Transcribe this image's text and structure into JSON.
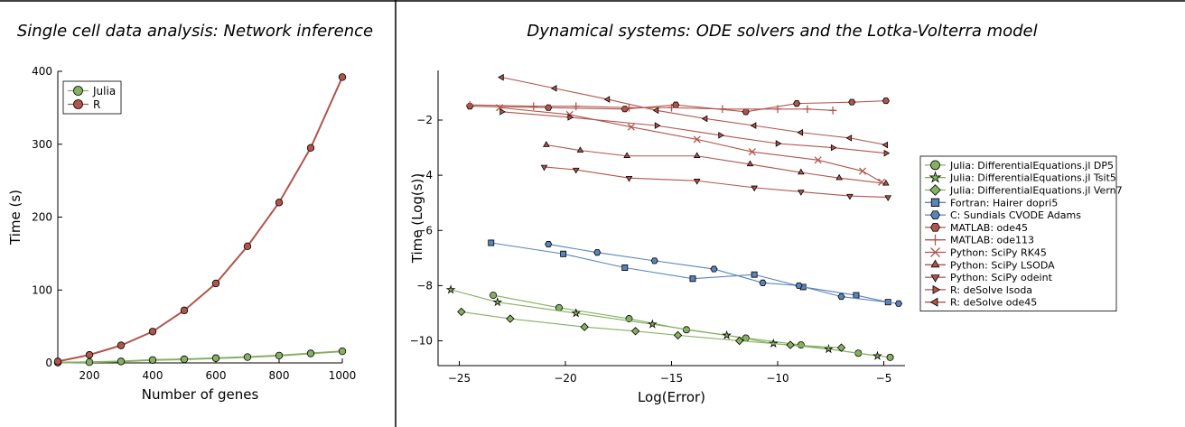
{
  "panels": [
    {
      "title": "Single cell data analysis: Network inference"
    },
    {
      "title": "Dynamical systems: ODE solvers and the Lotka-Volterra model"
    }
  ],
  "chart_data": [
    {
      "type": "line",
      "title": "Single cell data analysis: Network inference",
      "xlabel": "Number of genes",
      "ylabel": "Time (s)",
      "xlim": [
        100,
        1000
      ],
      "ylim": [
        0,
        400
      ],
      "xticks": [
        200,
        400,
        600,
        800,
        1000
      ],
      "yticks": [
        0,
        100,
        200,
        300,
        400
      ],
      "grid": false,
      "legend": "top-left",
      "x": [
        100,
        200,
        300,
        400,
        500,
        600,
        700,
        800,
        900,
        1000
      ],
      "series": [
        {
          "name": "Julia",
          "color": "#86b062",
          "marker": "circle",
          "values": [
            0.5,
            1,
            2,
            4,
            5,
            6.5,
            8,
            10,
            13,
            16
          ]
        },
        {
          "name": "R",
          "color": "#b0554d",
          "marker": "circle",
          "values": [
            2,
            11,
            24,
            43,
            72,
            109,
            160,
            220,
            295,
            392
          ]
        }
      ]
    },
    {
      "type": "line",
      "title": "Dynamical systems: ODE solvers and the Lotka-Volterra model",
      "xlabel": "Log(Error)",
      "ylabel": "Time (Log(s))",
      "xlim": [
        -26,
        -4
      ],
      "ylim": [
        -10.9,
        -0.2
      ],
      "xticks": [
        -25,
        -20,
        -15,
        -10,
        -5
      ],
      "yticks": [
        -10,
        -8,
        -6,
        -4,
        -2
      ],
      "grid": false,
      "legend": "right",
      "series": [
        {
          "name": "Julia: DifferentialEquations.jl DP5",
          "color": "#86b062",
          "marker": "circle",
          "x": [
            -23.4,
            -20.3,
            -17.0,
            -14.3,
            -11.5,
            -8.9,
            -6.2,
            -4.7
          ],
          "y": [
            -8.35,
            -8.8,
            -9.2,
            -9.6,
            -9.9,
            -10.15,
            -10.45,
            -10.6
          ]
        },
        {
          "name": "Julia: DifferentialEquations.jl Tsit5",
          "color": "#86b062",
          "marker": "star",
          "x": [
            -25.4,
            -23.2,
            -19.5,
            -15.9,
            -12.4,
            -10.2,
            -7.6,
            -5.3
          ],
          "y": [
            -8.15,
            -8.6,
            -9.0,
            -9.4,
            -9.8,
            -10.1,
            -10.3,
            -10.55
          ]
        },
        {
          "name": "Julia: DifferentialEquations.jl Vern7",
          "color": "#86b062",
          "marker": "diamond",
          "x": [
            -24.9,
            -22.6,
            -19.1,
            -16.7,
            -14.7,
            -11.8,
            -9.4,
            -7.0
          ],
          "y": [
            -8.95,
            -9.2,
            -9.5,
            -9.65,
            -9.8,
            -10.0,
            -10.15,
            -10.25
          ]
        },
        {
          "name": "Fortran: Hairer dopri5",
          "color": "#5b84b8",
          "marker": "square",
          "x": [
            -23.5,
            -20.1,
            -17.2,
            -14.0,
            -11.1,
            -8.8,
            -6.3,
            -4.8
          ],
          "y": [
            -6.45,
            -6.85,
            -7.35,
            -7.75,
            -7.6,
            -8.05,
            -8.35,
            -8.6
          ]
        },
        {
          "name": "C: Sundials CVODE Adams",
          "color": "#5b84b8",
          "marker": "hexagon",
          "x": [
            -20.8,
            -18.5,
            -15.8,
            -13.0,
            -10.7,
            -9.0,
            -7.0,
            -4.3
          ],
          "y": [
            -6.5,
            -6.8,
            -7.1,
            -7.4,
            -7.9,
            -8.0,
            -8.4,
            -8.65
          ]
        },
        {
          "name": "MATLAB: ode45",
          "color": "#b0554d",
          "marker": "hexagon",
          "x": [
            -24.5,
            -20.8,
            -17.2,
            -14.8,
            -11.5,
            -9.1,
            -6.5,
            -4.9
          ],
          "y": [
            -1.5,
            -1.55,
            -1.6,
            -1.45,
            -1.7,
            -1.4,
            -1.35,
            -1.3
          ]
        },
        {
          "name": "MATLAB: ode113",
          "color": "#b0554d",
          "marker": "plus",
          "x": [
            -24.5,
            -21.5,
            -19.5,
            -17.0,
            -15.0,
            -12.6,
            -10.0,
            -8.6,
            -7.4
          ],
          "y": [
            -1.45,
            -1.5,
            -1.5,
            -1.55,
            -1.55,
            -1.6,
            -1.6,
            -1.6,
            -1.65
          ]
        },
        {
          "name": "Python: SciPy RK45",
          "color": "#b0554d",
          "marker": "x",
          "x": [
            -23.1,
            -19.8,
            -16.9,
            -13.8,
            -11.2,
            -8.1,
            -6.0,
            -5.1
          ],
          "y": [
            -1.55,
            -1.8,
            -2.25,
            -2.7,
            -3.15,
            -3.45,
            -3.85,
            -4.25
          ]
        },
        {
          "name": "Python: SciPy LSODA",
          "color": "#b0554d",
          "marker": "triangle-up",
          "x": [
            -20.9,
            -19.3,
            -17.1,
            -13.8,
            -11.3,
            -8.9,
            -7.1,
            -4.9
          ],
          "y": [
            -2.9,
            -3.1,
            -3.3,
            -3.3,
            -3.6,
            -3.9,
            -4.1,
            -4.3
          ]
        },
        {
          "name": "Python: SciPy odeint",
          "color": "#b0554d",
          "marker": "triangle-down",
          "x": [
            -21.0,
            -19.5,
            -17.0,
            -13.8,
            -11.1,
            -8.9,
            -6.6,
            -4.8
          ],
          "y": [
            -3.7,
            -3.8,
            -4.1,
            -4.2,
            -4.45,
            -4.6,
            -4.75,
            -4.8
          ]
        },
        {
          "name": "R: deSolve lsoda",
          "color": "#b0554d",
          "marker": "triangle-right",
          "x": [
            -23.0,
            -19.8,
            -15.7,
            -12.7,
            -10.0,
            -7.4,
            -4.9
          ],
          "y": [
            -1.7,
            -1.9,
            -2.2,
            -2.55,
            -2.85,
            -3.0,
            -3.2
          ]
        },
        {
          "name": "R: deSolve ode45",
          "color": "#b0554d",
          "marker": "triangle-left",
          "x": [
            -23.0,
            -20.5,
            -18.0,
            -15.7,
            -13.4,
            -11.1,
            -8.9,
            -6.6,
            -4.9
          ],
          "y": [
            -0.45,
            -0.85,
            -1.25,
            -1.65,
            -1.95,
            -2.2,
            -2.45,
            -2.65,
            -2.9
          ]
        }
      ]
    }
  ]
}
